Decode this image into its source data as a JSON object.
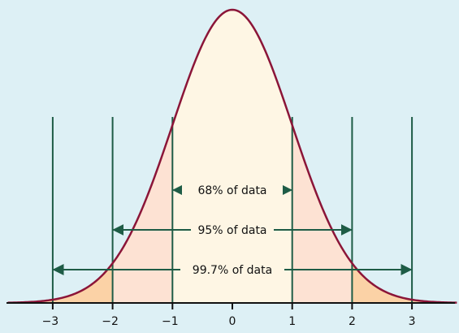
{
  "chart_data": {
    "type": "area",
    "distribution": "standard normal",
    "x_ticks": [
      "−3",
      "−2",
      "−1",
      "0",
      "1",
      "2",
      "3"
    ],
    "x_tick_values": [
      -3,
      -2,
      -1,
      0,
      1,
      2,
      3
    ],
    "xlim": [
      -3.75,
      3.75
    ],
    "vertical_lines_at": [
      -3,
      -2,
      -1,
      1,
      2,
      3
    ],
    "bands": [
      {
        "from": -1,
        "to": 1,
        "color": "#fef6e4"
      },
      {
        "from": -2,
        "to": -1,
        "color": "#fde2d3"
      },
      {
        "from": 1,
        "to": 2,
        "color": "#fde2d3"
      },
      {
        "from": -3,
        "to": -2,
        "color": "#fbd2a6"
      },
      {
        "from": 2,
        "to": 3,
        "color": "#fbd2a6"
      }
    ],
    "annotations": [
      {
        "label": "68% of data",
        "from": -1,
        "to": 1
      },
      {
        "label": "95% of data",
        "from": -2,
        "to": 2
      },
      {
        "label": "99.7% of data",
        "from": -3,
        "to": 3
      }
    ],
    "colors": {
      "background": "#ddf0f5",
      "curve": "#8b1538",
      "lines": "#1e5c46",
      "axis": "#111111"
    }
  }
}
